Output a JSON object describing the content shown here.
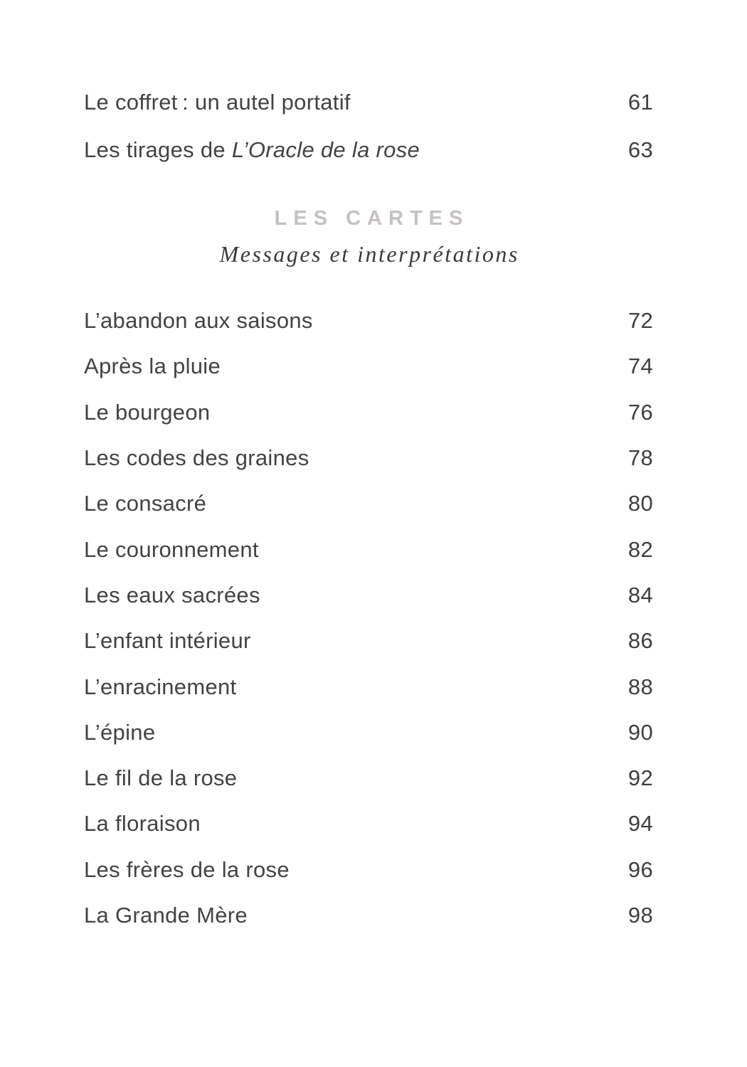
{
  "page": {
    "background_color": "#ffffff",
    "text_color": "#434246",
    "heading_color": "#c6c0c1"
  },
  "toc_top": [
    {
      "title": "Le coffret : un autel portatif",
      "page": "61"
    },
    {
      "title_prefix": "Les tirages de ",
      "title_italic": "L’Oracle de la rose",
      "page": "63"
    }
  ],
  "section": {
    "heading": "LES CARTES",
    "subtitle": "Messages et interprétations"
  },
  "entries": [
    {
      "title": "L’abandon aux saisons",
      "page": "72"
    },
    {
      "title": "Après la pluie",
      "page": "74"
    },
    {
      "title": "Le bourgeon",
      "page": "76"
    },
    {
      "title": "Les codes des graines",
      "page": "78"
    },
    {
      "title": "Le consacré",
      "page": "80"
    },
    {
      "title": "Le couronnement",
      "page": "82"
    },
    {
      "title": "Les eaux sacrées",
      "page": "84"
    },
    {
      "title": "L’enfant intérieur",
      "page": "86"
    },
    {
      "title": "L’enracinement",
      "page": "88"
    },
    {
      "title": "L’épine",
      "page": "90"
    },
    {
      "title": "Le fil de la rose",
      "page": "92"
    },
    {
      "title": "La floraison",
      "page": "94"
    },
    {
      "title": "Les frères de la rose",
      "page": "96"
    },
    {
      "title": "La Grande Mère",
      "page": "98"
    }
  ]
}
